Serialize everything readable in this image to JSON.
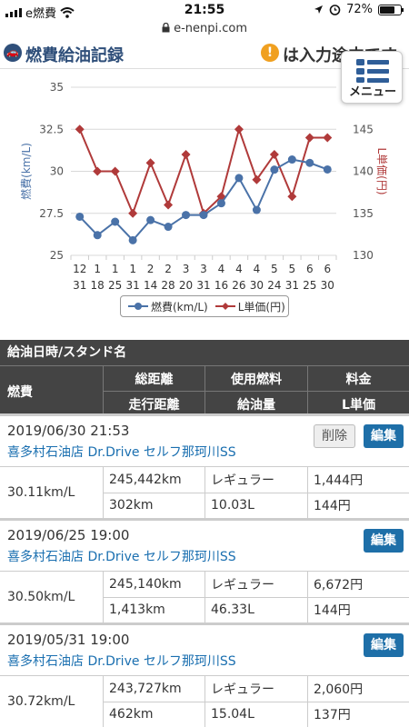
{
  "status": {
    "carrier": "e燃費",
    "time": "21:55",
    "battery": "72%",
    "battery_level": 0.72
  },
  "url": "e-nenpi.com",
  "header": {
    "title": "燃費給油記録",
    "notice": "は入力途中です"
  },
  "menu": {
    "label": "メニュー",
    "icon": "menu-grid-icon"
  },
  "colors": {
    "efficiency": "#4a72a8",
    "price": "#b03a3a",
    "edit": "#1e6fa8",
    "header_bg": "#444444"
  },
  "chart_data": {
    "type": "line",
    "categories": [
      [
        "12",
        "31"
      ],
      [
        "1",
        "18"
      ],
      [
        "1",
        "25"
      ],
      [
        "1",
        "31"
      ],
      [
        "2",
        "14"
      ],
      [
        "2",
        "28"
      ],
      [
        "3",
        "20"
      ],
      [
        "3",
        "31"
      ],
      [
        "4",
        "16"
      ],
      [
        "4",
        "26"
      ],
      [
        "4",
        "30"
      ],
      [
        "5",
        "24"
      ],
      [
        "5",
        "31"
      ],
      [
        "6",
        "25"
      ],
      [
        "6",
        "30"
      ]
    ],
    "series": [
      {
        "name": "燃費(km/L)",
        "axis": "left",
        "values": [
          27.3,
          26.2,
          27.0,
          25.9,
          27.1,
          26.7,
          27.4,
          27.4,
          28.1,
          29.6,
          27.7,
          30.1,
          30.7,
          30.5,
          30.11
        ]
      },
      {
        "name": "L単価(円)",
        "axis": "right",
        "values": [
          145,
          140,
          140,
          135,
          141,
          136,
          142,
          135,
          137,
          145,
          139,
          142,
          137,
          144,
          144
        ]
      }
    ],
    "y_left": {
      "label": "燃費(km/L)",
      "ticks": [
        "35",
        "32.5",
        "30",
        "27.5",
        "25"
      ],
      "ylim": [
        25,
        35
      ]
    },
    "y_right": {
      "label": "L単価(円)",
      "ticks": [
        "145",
        "140",
        "135",
        "130"
      ],
      "ylim": [
        130,
        150
      ]
    },
    "grid": true,
    "legend_position": "bottom"
  },
  "table": {
    "header": {
      "date_station": "給油日時/スタンド名",
      "efficiency": "燃費",
      "total_distance": "総距離",
      "trip_distance": "走行距離",
      "fuel_type": "使用燃料",
      "fuel_amount": "給油量",
      "cost": "料金",
      "unit_price": "L単価"
    },
    "records": [
      {
        "datetime": "2019/06/30 21:53",
        "station": "喜多村石油店 Dr.Drive セルフ那珂川SS",
        "efficiency": "30.11km/L",
        "total_distance": "245,442km",
        "trip_distance": "302km",
        "fuel_type": "レギュラー",
        "fuel_amount": "10.03L",
        "cost": "1,444円",
        "unit_price": "144円",
        "delete_label": "削除",
        "edit_label": "編集"
      },
      {
        "datetime": "2019/06/25 19:00",
        "station": "喜多村石油店 Dr.Drive セルフ那珂川SS",
        "efficiency": "30.50km/L",
        "total_distance": "245,140km",
        "trip_distance": "1,413km",
        "fuel_type": "レギュラー",
        "fuel_amount": "46.33L",
        "cost": "6,672円",
        "unit_price": "144円",
        "edit_label": "編集"
      },
      {
        "datetime": "2019/05/31 19:00",
        "station": "喜多村石油店 Dr.Drive セルフ那珂川SS",
        "efficiency": "30.72km/L",
        "total_distance": "243,727km",
        "trip_distance": "462km",
        "fuel_type": "レギュラー",
        "fuel_amount": "15.04L",
        "cost": "2,060円",
        "unit_price": "137円",
        "edit_label": "編集"
      }
    ]
  }
}
